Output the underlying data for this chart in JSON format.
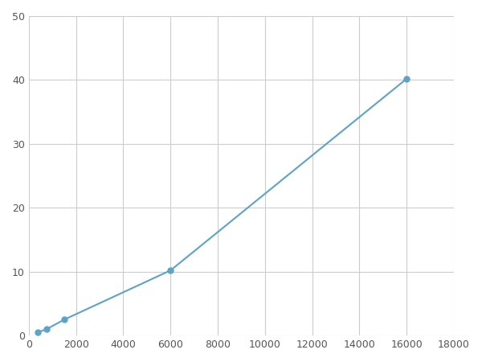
{
  "x": [
    375,
    750,
    1500,
    6000,
    16000
  ],
  "y": [
    0.5,
    1.0,
    2.5,
    10.2,
    40.2
  ],
  "line_color": "#5ba3c9",
  "marker_color": "#5ba3c9",
  "marker_style": "o",
  "marker_size": 5,
  "xlim": [
    0,
    18000
  ],
  "ylim": [
    0,
    50
  ],
  "xticks": [
    0,
    2000,
    4000,
    6000,
    8000,
    10000,
    12000,
    14000,
    16000,
    18000
  ],
  "yticks": [
    0,
    10,
    20,
    30,
    40,
    50
  ],
  "grid": true,
  "grid_color": "#cccccc",
  "background_color": "#ffffff",
  "line_width": 1.5
}
